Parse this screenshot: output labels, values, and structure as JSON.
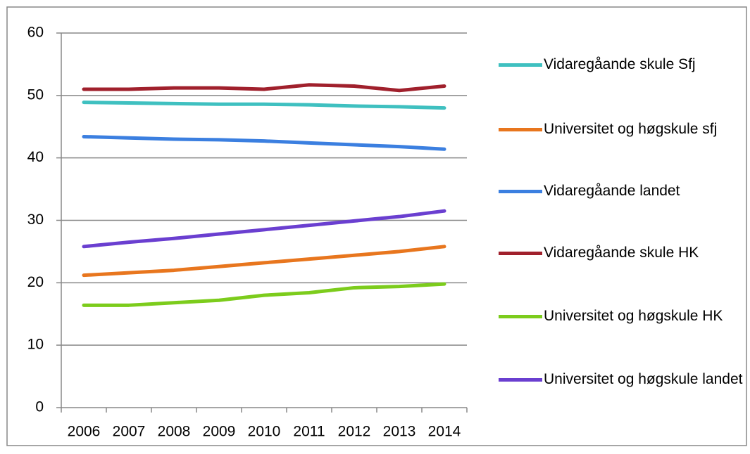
{
  "chart_data": {
    "type": "line",
    "categories": [
      "2006",
      "2007",
      "2008",
      "2009",
      "2010",
      "2011",
      "2012",
      "2013",
      "2014"
    ],
    "ylim": [
      0,
      60
    ],
    "yticks": [
      0,
      10,
      20,
      30,
      40,
      50,
      60
    ],
    "grid": true,
    "legend": "right",
    "series": [
      {
        "name": "Vidaregåande skule Sfj",
        "color": "#3fc0c0",
        "values": [
          48.9,
          48.8,
          48.7,
          48.6,
          48.6,
          48.5,
          48.3,
          48.2,
          48.0
        ]
      },
      {
        "name": "Universitet og høgskule sfj",
        "color": "#e8761e",
        "values": [
          21.2,
          21.6,
          22.0,
          22.6,
          23.2,
          23.8,
          24.4,
          25.0,
          25.8
        ]
      },
      {
        "name": "Vidaregåande landet",
        "color": "#3b7fe0",
        "values": [
          43.4,
          43.2,
          43.0,
          42.9,
          42.7,
          42.4,
          42.1,
          41.8,
          41.4
        ]
      },
      {
        "name": "Vidaregåande skule HK",
        "color": "#a0202c",
        "values": [
          51.0,
          51.0,
          51.2,
          51.2,
          51.0,
          51.7,
          51.5,
          50.8,
          51.5
        ]
      },
      {
        "name": "Universitet og høgskule HK",
        "color": "#7ccc1c",
        "values": [
          16.4,
          16.4,
          16.8,
          17.2,
          18.0,
          18.4,
          19.2,
          19.4,
          19.8
        ]
      },
      {
        "name": "Universitet og høgskule landet",
        "color": "#6a3fd0",
        "values": [
          25.8,
          26.5,
          27.1,
          27.8,
          28.5,
          29.2,
          29.9,
          30.6,
          31.5
        ]
      }
    ]
  }
}
